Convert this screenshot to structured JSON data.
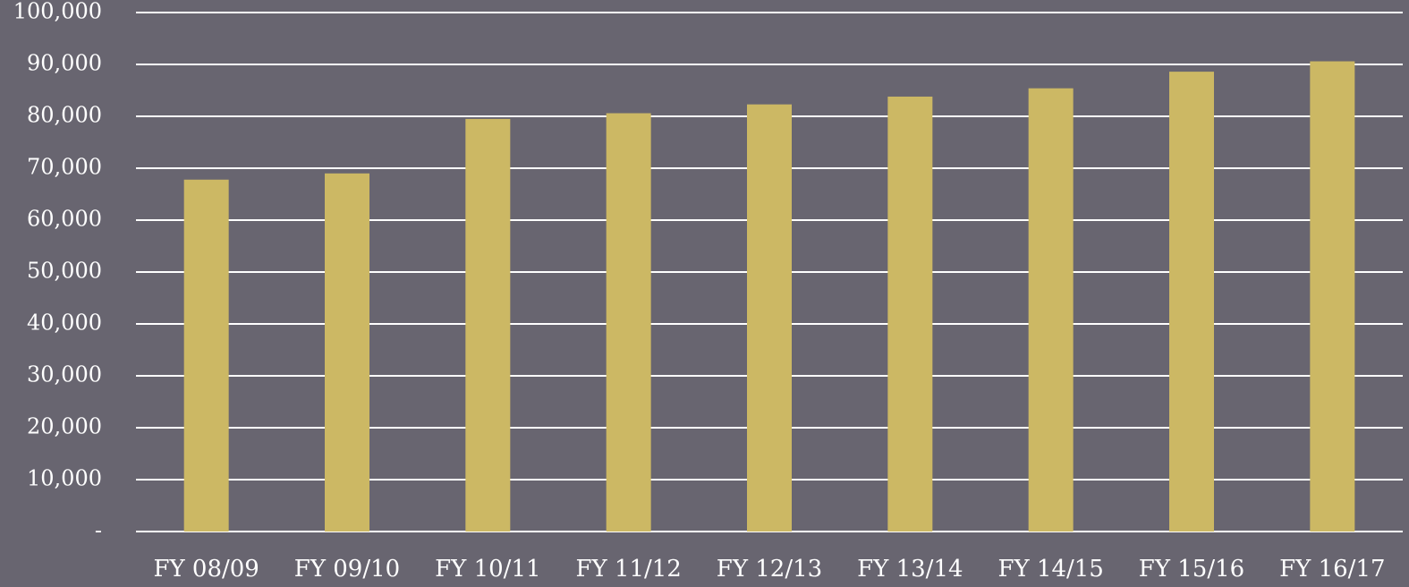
{
  "colors": {
    "background": "#686570",
    "bar": "#CCB864",
    "gridline": "#FFFFFF",
    "text": "#FFFFFF"
  },
  "chart_data": {
    "type": "bar",
    "title": "",
    "xlabel": "",
    "ylabel": "",
    "grid": true,
    "legend": "none",
    "ylim": [
      0,
      100000
    ],
    "y_ticks": [
      0,
      10000,
      20000,
      30000,
      40000,
      50000,
      60000,
      70000,
      80000,
      90000,
      100000
    ],
    "y_tick_labels": [
      "-",
      "10,000",
      "20,000",
      "30,000",
      "40,000",
      "50,000",
      "60,000",
      "70,000",
      "80,000",
      "90,000",
      "100,000"
    ],
    "categories": [
      "FY 08/09",
      "FY 09/10",
      "FY 10/11",
      "FY 11/12",
      "FY 12/13",
      "FY 13/14",
      "FY 14/15",
      "FY 15/16",
      "FY 16/17"
    ],
    "series": [
      {
        "values": [
          67800,
          69000,
          79500,
          80600,
          82300,
          83800,
          85400,
          88600,
          90600
        ]
      }
    ]
  }
}
